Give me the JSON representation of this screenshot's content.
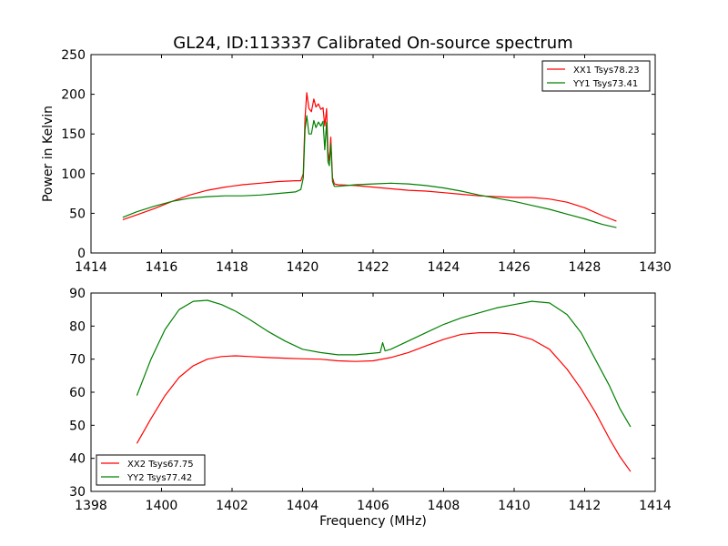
{
  "figure": {
    "title": "GL24, ID:113337 Calibrated On-source spectrum"
  },
  "colors": {
    "xx": "#ff0000",
    "yy": "#008000"
  },
  "chart_data": [
    {
      "type": "line",
      "title": "GL24, ID:113337 Calibrated On-source spectrum",
      "xlabel": "",
      "ylabel": "Power in Kelvin",
      "xlim": [
        1414,
        1430
      ],
      "ylim": [
        0,
        250
      ],
      "xticks": [
        1414,
        1416,
        1418,
        1420,
        1422,
        1424,
        1426,
        1428,
        1430
      ],
      "yticks": [
        0,
        50,
        100,
        150,
        200,
        250
      ],
      "grid": false,
      "legend_position": "top-right",
      "series": [
        {
          "name": "XX1 Tsys78.23",
          "color": "#ff0000",
          "x": [
            1414.9,
            1415.3,
            1415.8,
            1416.3,
            1416.8,
            1417.3,
            1417.8,
            1418.3,
            1418.8,
            1419.3,
            1419.8,
            1419.95,
            1420.02,
            1420.07,
            1420.12,
            1420.18,
            1420.25,
            1420.32,
            1420.38,
            1420.45,
            1420.52,
            1420.58,
            1420.63,
            1420.68,
            1420.72,
            1420.76,
            1420.8,
            1420.85,
            1420.9,
            1421.0,
            1421.5,
            1422.0,
            1422.5,
            1423.0,
            1423.5,
            1424.0,
            1424.5,
            1425.0,
            1425.5,
            1426.0,
            1426.5,
            1427.0,
            1427.5,
            1428.0,
            1428.5,
            1428.9
          ],
          "y": [
            42,
            48,
            56,
            65,
            73,
            79,
            83,
            86,
            88,
            90,
            91,
            91,
            100,
            170,
            202,
            182,
            178,
            194,
            184,
            188,
            181,
            183,
            160,
            182,
            128,
            115,
            146,
            95,
            87,
            86,
            85,
            83,
            81,
            79,
            78,
            76,
            74,
            72,
            71,
            70,
            70,
            68,
            64,
            57,
            47,
            40
          ]
        },
        {
          "name": "YY1 Tsys73.41",
          "color": "#008000",
          "x": [
            1414.9,
            1415.3,
            1415.8,
            1416.3,
            1416.8,
            1417.3,
            1417.8,
            1418.3,
            1418.8,
            1419.3,
            1419.8,
            1419.95,
            1420.02,
            1420.07,
            1420.12,
            1420.18,
            1420.25,
            1420.32,
            1420.38,
            1420.45,
            1420.52,
            1420.58,
            1420.63,
            1420.68,
            1420.72,
            1420.76,
            1420.8,
            1420.85,
            1420.9,
            1421.0,
            1421.5,
            1422.0,
            1422.5,
            1423.0,
            1423.5,
            1424.0,
            1424.5,
            1425.0,
            1425.5,
            1426.0,
            1426.5,
            1427.0,
            1427.5,
            1428.0,
            1428.5,
            1428.9
          ],
          "y": [
            45,
            52,
            59,
            65,
            69,
            71,
            72,
            72,
            73,
            75,
            77,
            80,
            95,
            155,
            173,
            150,
            150,
            167,
            158,
            165,
            160,
            166,
            130,
            165,
            115,
            110,
            138,
            90,
            84,
            84,
            86,
            87,
            88,
            87,
            85,
            82,
            78,
            73,
            69,
            65,
            60,
            55,
            49,
            43,
            36,
            32
          ]
        }
      ]
    },
    {
      "type": "line",
      "title": "",
      "xlabel": "Frequency (MHz)",
      "ylabel": "",
      "xlim": [
        1398,
        1414
      ],
      "ylim": [
        30,
        90
      ],
      "xticks": [
        1398,
        1400,
        1402,
        1404,
        1406,
        1408,
        1410,
        1412,
        1414
      ],
      "yticks": [
        30,
        40,
        50,
        60,
        70,
        80,
        90
      ],
      "grid": false,
      "legend_position": "bottom-left",
      "series": [
        {
          "name": "XX2 Tsys67.75",
          "color": "#ff0000",
          "x": [
            1399.3,
            1399.7,
            1400.1,
            1400.5,
            1400.9,
            1401.3,
            1401.7,
            1402.1,
            1402.5,
            1403.0,
            1403.5,
            1404.0,
            1404.5,
            1405.0,
            1405.5,
            1406.0,
            1406.5,
            1407.0,
            1407.5,
            1408.0,
            1408.5,
            1409.0,
            1409.5,
            1410.0,
            1410.5,
            1411.0,
            1411.5,
            1411.9,
            1412.3,
            1412.7,
            1413.0,
            1413.3
          ],
          "y": [
            44.5,
            52,
            59,
            64.5,
            68,
            70,
            70.8,
            71,
            70.8,
            70.5,
            70.3,
            70.1,
            70,
            69.5,
            69.3,
            69.5,
            70.5,
            72,
            74,
            76,
            77.5,
            78,
            78,
            77.5,
            76,
            73,
            67,
            61,
            54,
            46,
            40.5,
            36
          ]
        },
        {
          "name": "YY2 Tsys77.42",
          "color": "#008000",
          "x": [
            1399.3,
            1399.7,
            1400.1,
            1400.5,
            1400.9,
            1401.3,
            1401.7,
            1402.1,
            1402.5,
            1403.0,
            1403.5,
            1404.0,
            1404.5,
            1405.0,
            1405.5,
            1406.0,
            1406.2,
            1406.27,
            1406.34,
            1406.5,
            1407.0,
            1407.5,
            1408.0,
            1408.5,
            1409.0,
            1409.5,
            1410.0,
            1410.5,
            1411.0,
            1411.5,
            1411.9,
            1412.3,
            1412.7,
            1413.0,
            1413.3
          ],
          "y": [
            59,
            70,
            79,
            85,
            87.5,
            87.8,
            86.5,
            84.5,
            82,
            78.5,
            75.5,
            73,
            72,
            71.3,
            71.3,
            71.8,
            72,
            75,
            72.5,
            73,
            75.5,
            78,
            80.5,
            82.5,
            84,
            85.5,
            86.5,
            87.5,
            87,
            83.5,
            78,
            70,
            62,
            55,
            49.5
          ]
        }
      ]
    }
  ]
}
